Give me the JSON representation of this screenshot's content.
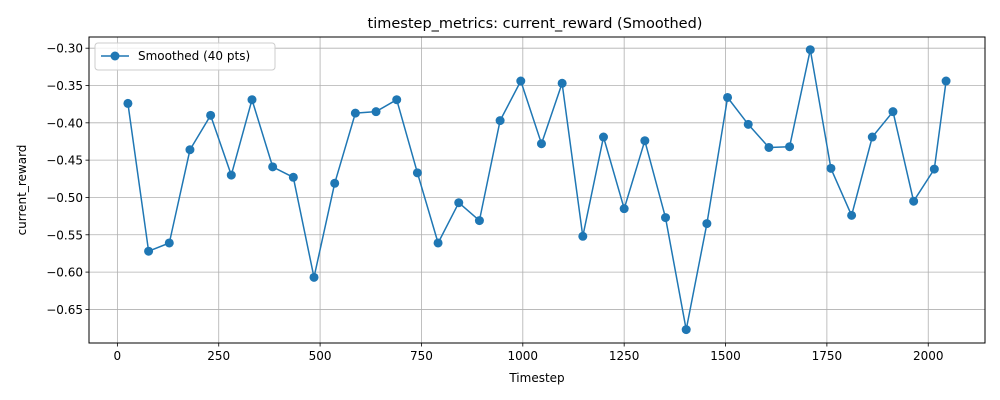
{
  "chart_data": {
    "type": "line",
    "title": "timestep_metrics: current_reward (Smoothed)",
    "xlabel": "Timestep",
    "ylabel": "current_reward",
    "xlim": [
      -70,
      2140
    ],
    "ylim": [
      -0.695,
      -0.285
    ],
    "xticks": [
      0,
      250,
      500,
      750,
      1000,
      1250,
      1500,
      1750,
      2000
    ],
    "xtick_labels": [
      "0",
      "250",
      "500",
      "750",
      "1000",
      "1250",
      "1500",
      "1750",
      "2000"
    ],
    "yticks": [
      -0.65,
      -0.6,
      -0.55,
      -0.5,
      -0.45,
      -0.4,
      -0.35,
      -0.3
    ],
    "ytick_labels": [
      "−0.65",
      "−0.60",
      "−0.55",
      "−0.50",
      "−0.45",
      "−0.40",
      "−0.35",
      "−0.30"
    ],
    "grid": true,
    "legend_position": "top-left",
    "series": [
      {
        "name": "Smoothed (40 pts)",
        "color": "#1f77b4",
        "marker": "circle",
        "x": [
          26,
          77,
          128,
          179,
          230,
          281,
          332,
          383,
          434,
          485,
          536,
          587,
          638,
          689,
          740,
          791,
          842,
          893,
          944,
          995,
          1046,
          1097,
          1148,
          1199,
          1250,
          1301,
          1352,
          1403,
          1454,
          1505,
          1556,
          1607,
          1658,
          1709,
          1760,
          1811,
          1862,
          1913,
          1964,
          2015,
          2044
        ],
        "y": [
          -0.374,
          -0.572,
          -0.561,
          -0.436,
          -0.39,
          -0.47,
          -0.369,
          -0.459,
          -0.473,
          -0.607,
          -0.481,
          -0.387,
          -0.385,
          -0.369,
          -0.467,
          -0.561,
          -0.507,
          -0.531,
          -0.397,
          -0.344,
          -0.428,
          -0.347,
          -0.552,
          -0.419,
          -0.515,
          -0.424,
          -0.527,
          -0.677,
          -0.535,
          -0.366,
          -0.402,
          -0.433,
          -0.432,
          -0.302,
          -0.461,
          -0.524,
          -0.419,
          -0.385,
          -0.505,
          -0.462,
          -0.344
        ]
      }
    ]
  }
}
